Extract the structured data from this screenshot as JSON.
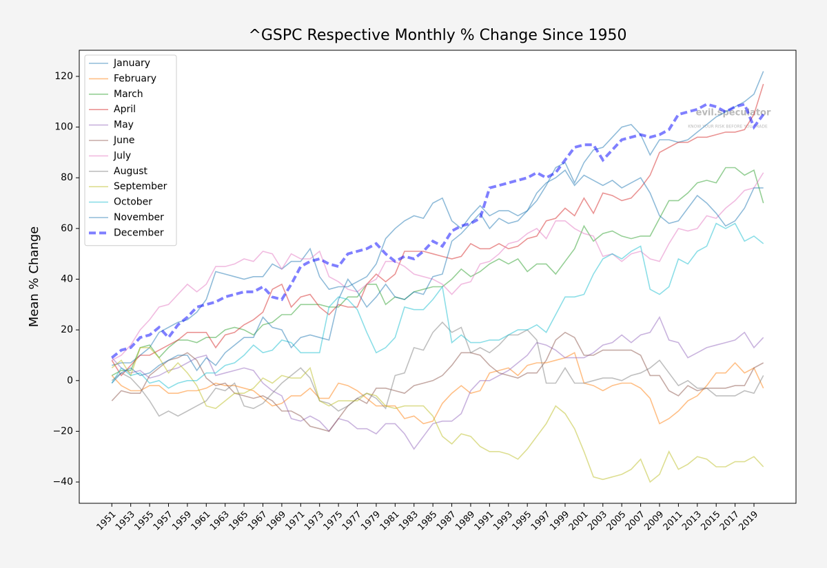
{
  "chart_data": {
    "type": "line",
    "title": "^GSPC Respective Monthly % Change Since 1950",
    "y_label": "Mean % Change",
    "watermark": {
      "name": "evil.speculator",
      "tagline": "KNOW YOUR RISK BEFORE YOU TRADE"
    },
    "legend": "upper left",
    "xlim": [
      1947.55,
      2023.45
    ],
    "ylim": [
      -48.4,
      130.3
    ],
    "xticks": [
      1951,
      1953,
      1955,
      1957,
      1959,
      1961,
      1963,
      1965,
      1967,
      1969,
      1971,
      1973,
      1975,
      1977,
      1979,
      1981,
      1983,
      1985,
      1987,
      1989,
      1991,
      1993,
      1995,
      1997,
      1999,
      2001,
      2003,
      2005,
      2007,
      2009,
      2011,
      2013,
      2015,
      2017,
      2019
    ],
    "yticks": [
      {
        "value": -40,
        "label": "−40"
      },
      {
        "value": -20,
        "label": "−20"
      },
      0,
      20,
      40,
      60,
      80,
      100,
      120
    ],
    "x": [
      1951,
      1952,
      1953,
      1954,
      1955,
      1956,
      1957,
      1958,
      1959,
      1960,
      1961,
      1962,
      1963,
      1964,
      1965,
      1966,
      1967,
      1968,
      1969,
      1970,
      1971,
      1972,
      1973,
      1974,
      1975,
      1976,
      1977,
      1978,
      1979,
      1980,
      1981,
      1982,
      1983,
      1984,
      1985,
      1986,
      1987,
      1988,
      1989,
      1990,
      1991,
      1992,
      1993,
      1994,
      1995,
      1996,
      1997,
      1998,
      1999,
      2000,
      2001,
      2002,
      2003,
      2004,
      2005,
      2006,
      2007,
      2008,
      2009,
      2010,
      2011,
      2012,
      2013,
      2014,
      2015,
      2016,
      2017,
      2018,
      2019,
      2020
    ],
    "series": [
      {
        "name": "January",
        "color": "#1f77b4",
        "values": [
          6,
          7,
          7,
          10,
          13,
          19,
          21,
          23,
          24,
          27,
          32,
          43,
          42,
          41,
          40,
          41,
          41,
          46,
          44,
          47,
          47,
          52,
          41,
          36,
          37,
          37,
          39,
          41,
          46,
          56,
          60,
          63,
          65,
          64,
          70,
          72,
          63,
          60,
          65,
          69,
          65,
          67,
          67,
          65,
          67,
          71,
          77,
          84,
          86,
          78,
          86,
          91,
          92,
          96,
          100,
          101,
          97,
          89,
          95,
          95,
          94,
          95,
          98,
          101,
          104,
          106,
          108,
          110,
          113,
          122
        ]
      },
      {
        "name": "February",
        "color": "#ff7f0e",
        "values": [
          2,
          -2,
          -4,
          -4,
          -2,
          -2,
          -5,
          -5,
          -4,
          -4,
          -3,
          -1,
          -2,
          -2,
          -3,
          -4,
          -7,
          -10,
          -9,
          -6,
          -6,
          -3,
          -7,
          -7,
          -1,
          -2,
          -4,
          -7,
          -10,
          -10,
          -10,
          -15,
          -14,
          -17,
          -16,
          -9,
          -5,
          -2,
          -5,
          -4,
          3,
          4,
          5,
          2,
          6,
          7,
          7,
          8,
          9,
          11,
          -1,
          -2,
          -4,
          -2,
          -1,
          -1,
          -3,
          -7,
          -17,
          -15,
          -12,
          -8,
          -6,
          -2,
          3,
          3,
          7,
          3,
          5,
          -3
        ]
      },
      {
        "name": "March",
        "color": "#2ca02c",
        "values": [
          2,
          4,
          4,
          13,
          14,
          9,
          13,
          16,
          16,
          15,
          17,
          17,
          20,
          21,
          20,
          18,
          22,
          23,
          26,
          26,
          30,
          30,
          30,
          29,
          29,
          33,
          33,
          38,
          38,
          30,
          33,
          32,
          35,
          36,
          37,
          37,
          40,
          44,
          41,
          43,
          46,
          48,
          46,
          48,
          43,
          46,
          46,
          42,
          47,
          52,
          61,
          55,
          58,
          59,
          57,
          56,
          57,
          57,
          64,
          71,
          71,
          74,
          78,
          79,
          78,
          84,
          84,
          81,
          83,
          70
        ]
      },
      {
        "name": "April",
        "color": "#d62728",
        "values": [
          8,
          2,
          6,
          10,
          10,
          12,
          14,
          16,
          19,
          19,
          19,
          13,
          18,
          19,
          22,
          24,
          27,
          36,
          38,
          29,
          33,
          34,
          29,
          26,
          30,
          29,
          29,
          38,
          42,
          39,
          42,
          51,
          51,
          51,
          50,
          49,
          48,
          49,
          54,
          52,
          52,
          54,
          52,
          53,
          56,
          57,
          63,
          64,
          68,
          65,
          72,
          66,
          74,
          73,
          71,
          72,
          76,
          81,
          90,
          92,
          94,
          94,
          96,
          96,
          97,
          98,
          98,
          99,
          105,
          117
        ]
      },
      {
        "name": "May",
        "color": "#9467bd",
        "values": [
          9,
          5,
          3,
          4,
          1,
          2,
          4,
          5,
          7,
          9,
          10,
          2,
          3,
          4,
          5,
          4,
          -1,
          -4,
          -6,
          -15,
          -16,
          -14,
          -16,
          -20,
          -15,
          -16,
          -19,
          -19,
          -21,
          -17,
          -17,
          -21,
          -27,
          -22,
          -17,
          -16,
          -16,
          -13,
          -4,
          0,
          0,
          2,
          4,
          7,
          10,
          15,
          14,
          12,
          9,
          9,
          9,
          11,
          14,
          15,
          18,
          15,
          18,
          19,
          25,
          16,
          15,
          9,
          11,
          13,
          14,
          15,
          16,
          19,
          13,
          17
        ]
      },
      {
        "name": "June",
        "color": "#8c564b",
        "values": [
          -8,
          -4,
          -5,
          -5,
          2,
          5,
          8,
          9,
          11,
          8,
          1,
          -2,
          -1,
          -5,
          -6,
          -7,
          -6,
          -8,
          -12,
          -12,
          -14,
          -18,
          -19,
          -20,
          -15,
          -10,
          -7,
          -9,
          -3,
          -3,
          -4,
          -5,
          -2,
          -1,
          0,
          2,
          6,
          11,
          11,
          10,
          6,
          3,
          2,
          1,
          3,
          3,
          8,
          16,
          19,
          17,
          10,
          10,
          12,
          12,
          12,
          12,
          10,
          2,
          2,
          -4,
          -6,
          -2,
          -4,
          -3,
          -3,
          -3,
          -2,
          -2,
          5,
          7
        ]
      },
      {
        "name": "July",
        "color": "#e377c2",
        "values": [
          8,
          10,
          14,
          20,
          24,
          29,
          30,
          34,
          38,
          35,
          38,
          45,
          45,
          46,
          48,
          47,
          51,
          50,
          44,
          50,
          48,
          48,
          51,
          41,
          39,
          36,
          35,
          38,
          40,
          47,
          47,
          45,
          42,
          41,
          40,
          38,
          34,
          38,
          39,
          46,
          47,
          50,
          54,
          55,
          58,
          60,
          56,
          63,
          63,
          60,
          58,
          57,
          49,
          50,
          47,
          50,
          51,
          48,
          47,
          54,
          60,
          59,
          60,
          65,
          64,
          68,
          71,
          75,
          76,
          82
        ]
      },
      {
        "name": "August",
        "color": "#7f7f7f",
        "values": [
          0,
          3,
          1,
          -3,
          -8,
          -14,
          -12,
          -14,
          -12,
          -10,
          -8,
          -3,
          -4,
          -1,
          -10,
          -11,
          -9,
          -5,
          -1,
          2,
          5,
          1,
          -8,
          -9,
          -12,
          -10,
          -7,
          -5,
          -7,
          -11,
          2,
          3,
          13,
          12,
          19,
          23,
          19,
          21,
          11,
          13,
          11,
          14,
          18,
          18,
          20,
          16,
          -1,
          -1,
          5,
          -1,
          -1,
          0,
          1,
          1,
          0,
          2,
          3,
          5,
          8,
          3,
          -2,
          0,
          -3,
          -3,
          -6,
          -6,
          -6,
          -4,
          -5,
          2
        ]
      },
      {
        "name": "September",
        "color": "#bcbd22",
        "values": [
          5,
          8,
          2,
          13,
          13,
          9,
          3,
          7,
          3,
          -2,
          -10,
          -11,
          -8,
          -5,
          -5,
          -3,
          1,
          -1,
          2,
          1,
          1,
          5,
          -8,
          -10,
          -8,
          -8,
          -8,
          -5,
          -6,
          -10,
          -11,
          -10,
          -10,
          -10,
          -14,
          -22,
          -25,
          -21,
          -22,
          -26,
          -28,
          -28,
          -29,
          -31,
          -27,
          -22,
          -17,
          -10,
          -13,
          -19,
          -28,
          -38,
          -39,
          -38,
          -37,
          -35,
          -31,
          -40,
          -37,
          -28,
          -35,
          -33,
          -30,
          -31,
          -34,
          -34,
          -32,
          -32,
          -30,
          -34
        ]
      },
      {
        "name": "October",
        "color": "#17becf",
        "values": [
          -1,
          5,
          2,
          3,
          -1,
          0,
          -3,
          -1,
          0,
          0,
          3,
          3,
          6,
          7,
          10,
          14,
          11,
          12,
          16,
          15,
          11,
          11,
          11,
          29,
          33,
          32,
          28,
          19,
          11,
          13,
          17,
          29,
          28,
          28,
          32,
          37,
          15,
          18,
          15,
          15,
          16,
          16,
          18,
          20,
          20,
          22,
          19,
          26,
          33,
          33,
          34,
          42,
          48,
          50,
          48,
          51,
          53,
          36,
          34,
          37,
          48,
          46,
          51,
          53,
          62,
          60,
          62,
          55,
          57,
          54
        ]
      },
      {
        "name": "November",
        "color": "#1f77b4",
        "values": [
          -1,
          3,
          5,
          2,
          3,
          6,
          8,
          10,
          10,
          4,
          9,
          6,
          11,
          14,
          17,
          17,
          25,
          21,
          20,
          13,
          17,
          18,
          17,
          16,
          32,
          40,
          35,
          29,
          33,
          38,
          33,
          32,
          35,
          34,
          41,
          42,
          55,
          58,
          62,
          66,
          60,
          64,
          62,
          63,
          67,
          74,
          78,
          80,
          83,
          77,
          81,
          79,
          77,
          79,
          76,
          78,
          80,
          74,
          65,
          62,
          63,
          68,
          73,
          70,
          66,
          61,
          63,
          68,
          76,
          76
        ]
      },
      {
        "name": "December",
        "color": "#0000ff",
        "style": "dashed",
        "values": [
          9,
          12,
          13,
          17,
          18,
          21,
          17,
          22,
          25,
          29,
          30,
          31,
          33,
          34,
          35,
          35,
          37,
          33,
          32,
          38,
          45,
          47,
          48,
          46,
          45,
          50,
          51,
          52,
          54,
          50,
          47,
          49,
          48,
          51,
          55,
          53,
          59,
          61,
          62,
          64,
          76,
          77,
          78,
          79,
          80,
          82,
          80,
          82,
          87,
          92,
          93,
          93,
          87,
          91,
          95,
          96,
          97,
          96,
          97,
          99,
          105,
          106,
          107,
          109,
          108,
          106,
          108,
          109,
          100,
          105
        ]
      }
    ]
  }
}
